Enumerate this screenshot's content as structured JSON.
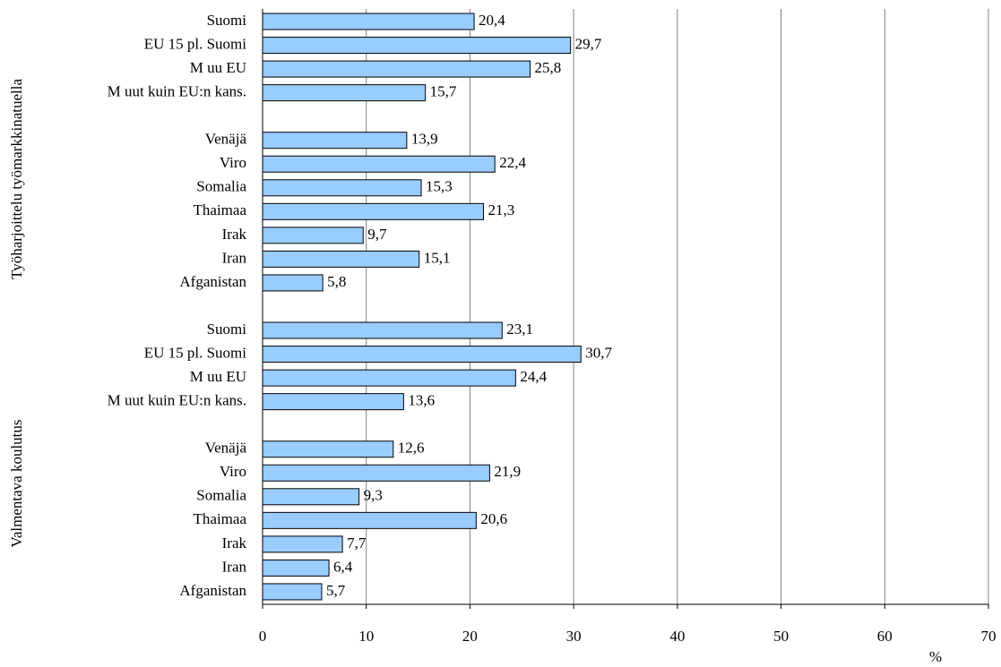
{
  "chart_data": {
    "type": "bar",
    "orientation": "horizontal",
    "categories": [
      "Suomi",
      "EU 15 pl. Suomi",
      "M uu EU",
      "M uut kuin EU:n kans.",
      null,
      "Venäjä",
      "Viro",
      "Somalia",
      "Thaimaa",
      "Irak",
      "Iran",
      "Afganistan",
      null,
      "Suomi",
      "EU 15 pl. Suomi",
      "M uu EU",
      "M uut kuin EU:n kans.",
      null,
      "Venäjä",
      "Viro",
      "Somalia",
      "Thaimaa",
      "Irak",
      "Iran",
      "Afganistan"
    ],
    "values": [
      20.4,
      29.7,
      25.8,
      15.7,
      null,
      13.9,
      22.4,
      15.3,
      21.3,
      9.7,
      15.1,
      5.8,
      null,
      23.1,
      30.7,
      24.4,
      13.6,
      null,
      12.6,
      21.9,
      9.3,
      20.6,
      7.7,
      6.4,
      5.7
    ],
    "value_labels": [
      "20,4",
      "29,7",
      "25,8",
      "15,7",
      null,
      "13,9",
      "22,4",
      "15,3",
      "21,3",
      "9,7",
      "15,1",
      "5,8",
      null,
      "23,1",
      "30,7",
      "24,4",
      "13,6",
      null,
      "12,6",
      "21,9",
      "9,3",
      "20,6",
      "7,7",
      "6,4",
      "5,7"
    ],
    "groups": [
      {
        "label": "Työharjoittelu työmarkkinatuella"
      },
      {
        "label": "Valmentava koulutus"
      }
    ],
    "color": "#99ccff",
    "xlabel": "%",
    "xlim": [
      0,
      70
    ],
    "xticks": [
      0,
      10,
      20,
      30,
      40,
      50,
      60,
      70
    ],
    "grid": true
  }
}
